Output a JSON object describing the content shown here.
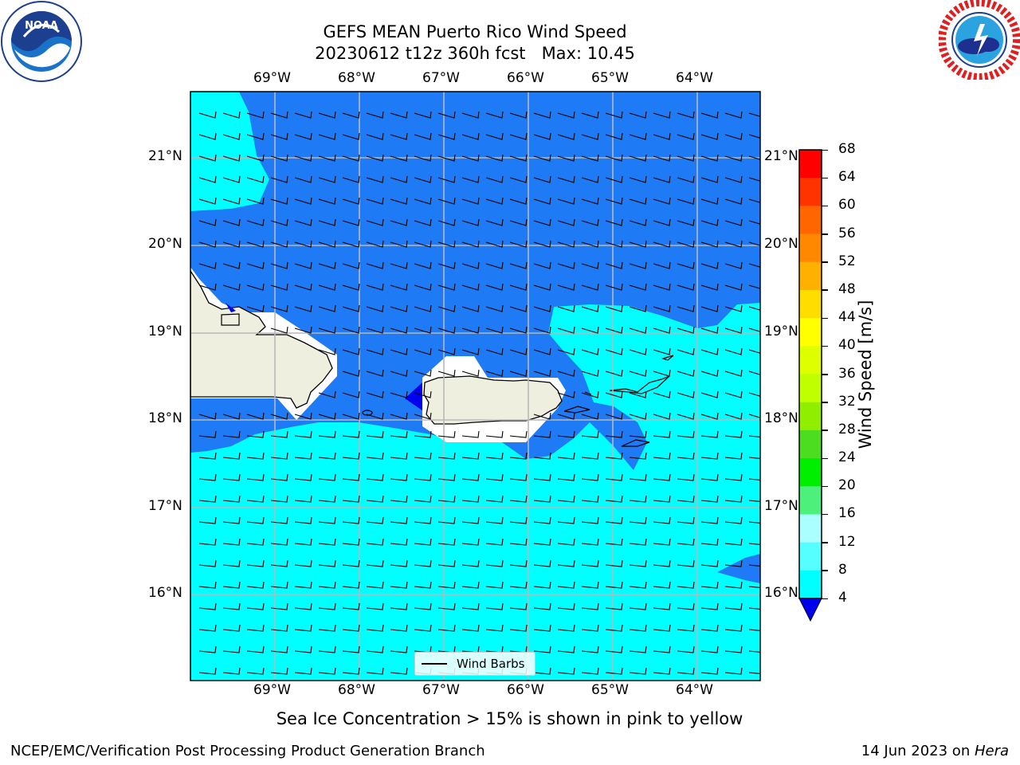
{
  "title": {
    "line1": "GEFS MEAN Puerto Rico Wind Speed",
    "line2": "20230612 t12z 360h fcst   Max: 10.45"
  },
  "logos": {
    "left": "noaa-logo",
    "right": "nws-logo"
  },
  "map": {
    "lon_labels": [
      "69°W",
      "68°W",
      "67°W",
      "66°W",
      "65°W",
      "64°W"
    ],
    "lat_labels": [
      "21°N",
      "20°N",
      "19°N",
      "18°N",
      "17°N",
      "16°N"
    ],
    "legend_label": "Wind Barbs",
    "colors": {
      "land": "#efefdf",
      "ocean_4_8": "#1e7af5",
      "ocean_8_12": "#00ffff",
      "low": "#0000ee"
    }
  },
  "colorbar": {
    "label": "Wind Speed [m/s]",
    "ticks": [
      "68",
      "64",
      "60",
      "56",
      "52",
      "48",
      "44",
      "40",
      "36",
      "32",
      "28",
      "24",
      "20",
      "16",
      "12",
      "8",
      "4"
    ],
    "colors": [
      "#ff0000",
      "#ff3300",
      "#ff6600",
      "#ff8800",
      "#ffb000",
      "#ffdd00",
      "#ffff00",
      "#ddff00",
      "#c0ff00",
      "#90ee00",
      "#4cdd20",
      "#00ee00",
      "#4cf07a",
      "#aaffff",
      "#55ffff",
      "#00ffff",
      "#1e7af5"
    ],
    "extend_color": "#0000ee"
  },
  "caption": "Sea Ice Concentration > 15% is shown in pink to yellow",
  "footer": {
    "left": "NCEP/EMC/Verification Post Processing Product Generation Branch",
    "right_prefix": "14 Jun 2023 on ",
    "right_host": "Hera"
  }
}
